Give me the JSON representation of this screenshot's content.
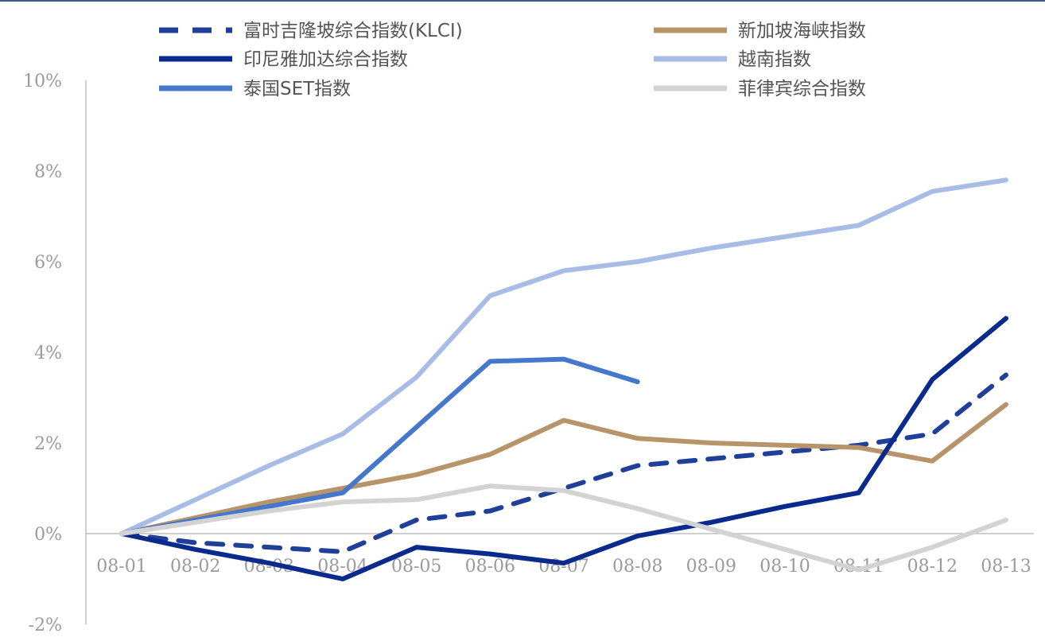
{
  "chart_data": {
    "type": "line",
    "title": "",
    "xlabel": "",
    "ylabel": "",
    "x": [
      "08-01",
      "08-02",
      "08-03",
      "08-04",
      "08-05",
      "08-06",
      "08-07",
      "08-08",
      "08-09",
      "08-10",
      "08-11",
      "08-12",
      "08-13"
    ],
    "ylim": [
      -2,
      10
    ],
    "yticks": [
      -2,
      0,
      2,
      4,
      6,
      8,
      10
    ],
    "ytick_labels": [
      "-2%",
      "0%",
      "2%",
      "4%",
      "6%",
      "8%",
      "10%"
    ],
    "grid": false,
    "legend_position": "top",
    "series": [
      {
        "name": "富时吉隆坡综合指数(KLCI)",
        "color": "#1f3f99",
        "dash": true,
        "values": [
          0,
          -0.2,
          -0.3,
          -0.4,
          0.3,
          0.5,
          1.0,
          1.5,
          1.65,
          1.8,
          1.95,
          2.2,
          3.5
        ]
      },
      {
        "name": "新加坡海峡指数",
        "color": "#b8946a",
        "dash": false,
        "values": [
          0,
          0.35,
          0.7,
          1.0,
          1.3,
          1.75,
          2.5,
          2.1,
          2.0,
          1.95,
          1.9,
          1.6,
          2.85
        ]
      },
      {
        "name": "印尼雅加达综合指数",
        "color": "#0a2a8c",
        "dash": false,
        "values": [
          0,
          -0.35,
          -0.65,
          -1.0,
          -0.3,
          -0.45,
          -0.65,
          -0.05,
          0.25,
          0.6,
          0.9,
          3.4,
          4.75
        ]
      },
      {
        "name": "越南指数",
        "color": "#a9bce6",
        "dash": false,
        "values": [
          0,
          0.75,
          1.5,
          2.2,
          3.45,
          5.25,
          5.8,
          6.0,
          6.3,
          6.55,
          6.8,
          7.55,
          7.8
        ]
      },
      {
        "name": "泰国SET指数",
        "color": "#4577cc",
        "dash": false,
        "values": [
          0,
          0.3,
          0.6,
          0.9,
          2.35,
          3.8,
          3.85,
          3.35,
          null,
          null,
          null,
          null,
          null
        ]
      },
      {
        "name": "菲律宾综合指数",
        "color": "#d3d3d3",
        "dash": false,
        "values": [
          0,
          0.25,
          0.5,
          0.7,
          0.75,
          1.05,
          0.95,
          0.55,
          0.1,
          -0.35,
          -0.8,
          -0.3,
          0.3
        ]
      }
    ]
  }
}
